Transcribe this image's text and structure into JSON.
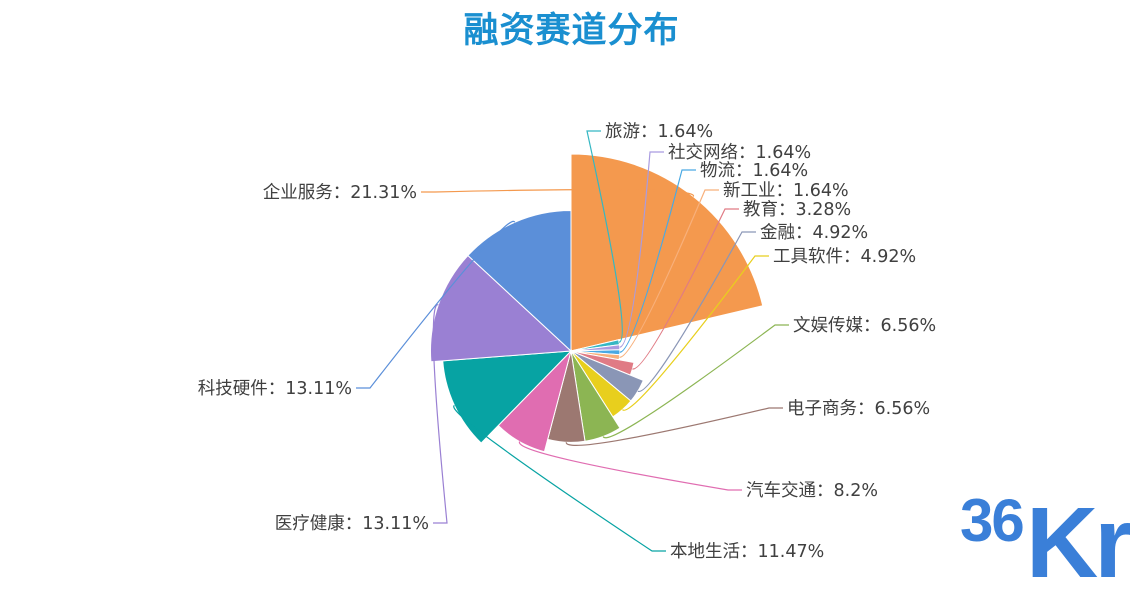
{
  "chart_data": {
    "type": "pie",
    "variant": "rose (nightingale) by radius",
    "title": "融资赛道分布",
    "legend": "none",
    "slices": [
      {
        "label": "企业服务",
        "value": 21.31,
        "display": "企业服务：21.31%",
        "color": "#f4994e"
      },
      {
        "label": "旅游",
        "value": 1.64,
        "display": "旅游：1.64%",
        "color": "#35b7c3"
      },
      {
        "label": "社交网络",
        "value": 1.64,
        "display": "社交网络：1.64%",
        "color": "#a99be0"
      },
      {
        "label": "物流",
        "value": 1.64,
        "display": "物流：1.64%",
        "color": "#4aa9e3"
      },
      {
        "label": "新工业",
        "value": 1.64,
        "display": "新工业：1.64%",
        "color": "#f8b07b"
      },
      {
        "label": "教育",
        "value": 3.28,
        "display": "教育：3.28%",
        "color": "#e07b85"
      },
      {
        "label": "金融",
        "value": 4.92,
        "display": "金融：4.92%",
        "color": "#8a96b6"
      },
      {
        "label": "工具软件",
        "value": 4.92,
        "display": "工具软件：4.92%",
        "color": "#e8cf1d"
      },
      {
        "label": "文娱传媒",
        "value": 6.56,
        "display": "文娱传媒：6.56%",
        "color": "#8cb553"
      },
      {
        "label": "电子商务",
        "value": 6.56,
        "display": "电子商务：6.56%",
        "color": "#9c7871"
      },
      {
        "label": "汽车交通",
        "value": 8.2,
        "display": "汽车交通：8.2%",
        "color": "#e06db1"
      },
      {
        "label": "本地生活",
        "value": 11.47,
        "display": "本地生活：11.47%",
        "color": "#07a3a3"
      },
      {
        "label": "医疗健康",
        "value": 13.11,
        "display": "医疗健康：13.11%",
        "color": "#9a80d3"
      },
      {
        "label": "科技硬件",
        "value": 13.11,
        "display": "科技硬件：13.11%",
        "color": "#5b8fd9"
      }
    ]
  },
  "logo": {
    "text": "36Kr",
    "color": "#3a7fd8"
  }
}
